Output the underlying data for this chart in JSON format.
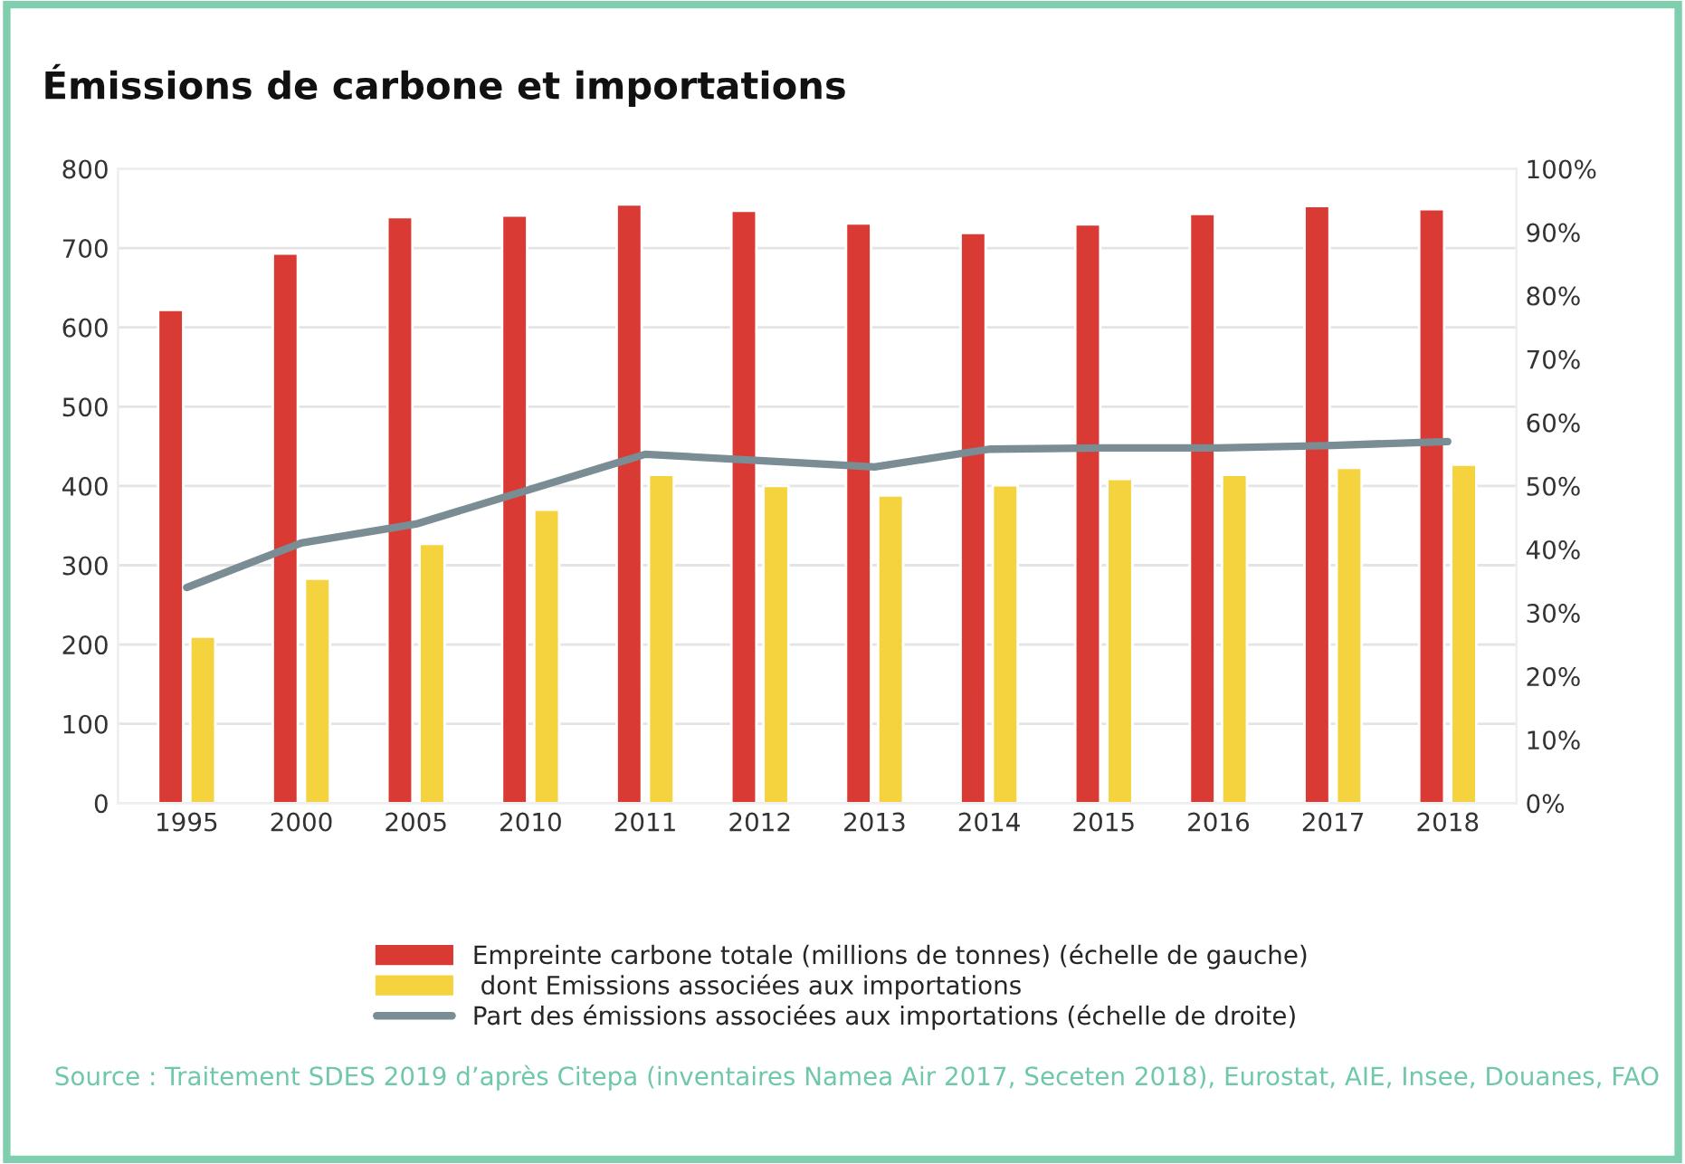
{
  "chart_data": {
    "type": "bar",
    "title": "Émissions de carbone et importations",
    "categories": [
      "1995",
      "2000",
      "2005",
      "2010",
      "2011",
      "2012",
      "2013",
      "2014",
      "2015",
      "2016",
      "2017",
      "2018"
    ],
    "series": [
      {
        "name": "Empreinte carbone totale (millions de tonnes) (échelle de gauche)",
        "color": "#d93a34",
        "values": [
          622,
          693,
          739,
          741,
          755,
          747,
          731,
          719,
          730,
          743,
          753,
          749
        ]
      },
      {
        "name": " dont Emissions associées aux importations",
        "color": "#f5d33f",
        "values": [
          210,
          283,
          327,
          370,
          414,
          400,
          388,
          401,
          409,
          414,
          423,
          427
        ]
      },
      {
        "name": "Part des émissions associées aux importations (échelle de droite)",
        "type": "line",
        "axis": "y2",
        "color": "#7a8c94",
        "values": [
          34,
          41,
          44,
          49.5,
          55,
          54,
          53,
          55.8,
          56,
          56,
          56.4,
          57
        ]
      }
    ],
    "ylim": [
      0,
      800
    ],
    "yticks": [
      0,
      100,
      200,
      300,
      400,
      500,
      600,
      700,
      800
    ],
    "y2lim": [
      0,
      100
    ],
    "y2ticks": [
      {
        "value": 0,
        "label": "0%"
      },
      {
        "value": 10,
        "label": "10%"
      },
      {
        "value": 20,
        "label": "20%"
      },
      {
        "value": 30,
        "label": "30%"
      },
      {
        "value": 40,
        "label": "40%"
      },
      {
        "value": 50,
        "label": "50%"
      },
      {
        "value": 60,
        "label": "60%"
      },
      {
        "value": 70,
        "label": "70%"
      },
      {
        "value": 80,
        "label": "80%"
      },
      {
        "value": 90,
        "label": "90%"
      },
      {
        "value": 100,
        "label": "100%"
      }
    ],
    "grid": "y",
    "legend": "bottom",
    "marker": "none",
    "line_style": "solid",
    "annotations": [
      "Source : Traitement SDES 2019 d’après Citepa (inventaires Namea Air 2017, Seceten 2018), Eurostat, AIE, Insee, Douanes, FAO"
    ]
  }
}
